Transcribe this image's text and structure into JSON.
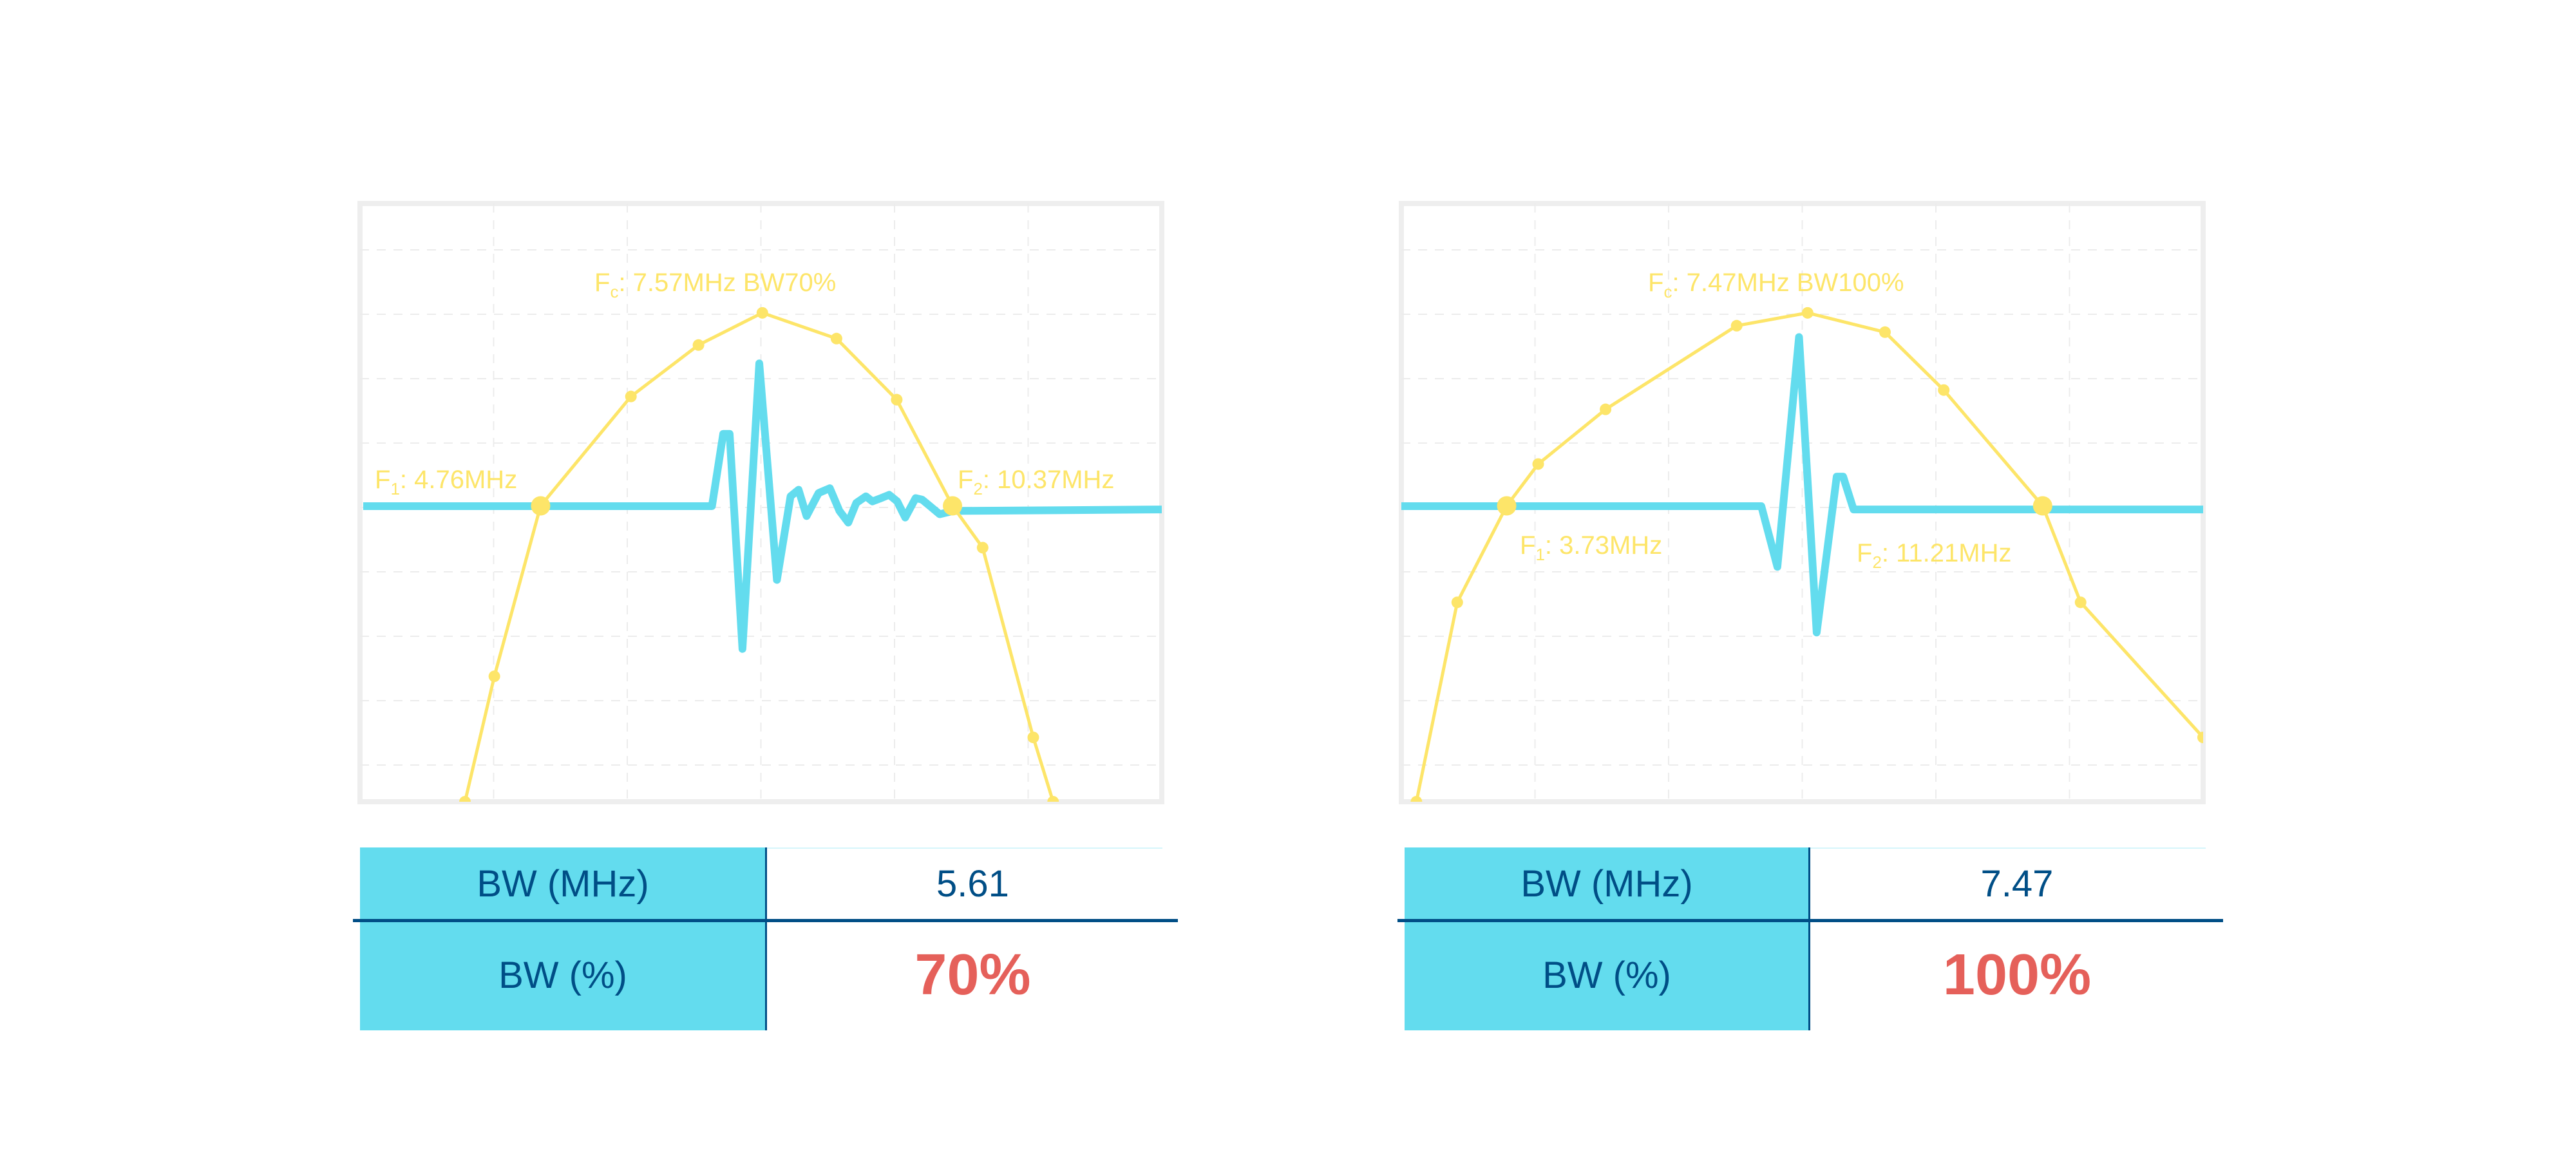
{
  "colors": {
    "pulse": "#63dcee",
    "response": "#fde569",
    "frame": "#eeeeee",
    "table_header": "#63dcee",
    "table_text": "#004e86",
    "percent": "#e5605a"
  },
  "chart_data": [
    {
      "type": "line",
      "grid": true,
      "x_unit": "MHz",
      "y_unit": "dB (relative)",
      "xlim": [
        2.3,
        13.22
      ],
      "ylim": [
        -15.2,
        3.4
      ],
      "labels": {
        "fc": {
          "sym": "F",
          "sub": "c",
          "text": ": 7.57MHz BW70%"
        },
        "f1": {
          "sym": "F",
          "sub": "1",
          "text": ": 4.76MHz"
        },
        "f2": {
          "sym": "F",
          "sub": "2",
          "text": ": 10.37MHz"
        }
      },
      "markers_mhz": [
        4.76,
        10.37
      ],
      "response": {
        "x": [
          3.73,
          4.13,
          4.76,
          5.99,
          6.91,
          7.78,
          8.79,
          9.61,
          10.37,
          10.78,
          11.47,
          11.74
        ],
        "y": [
          -15.2,
          -11.3,
          -6.0,
          -2.6,
          -1.0,
          0,
          -0.8,
          -2.7,
          -6.0,
          -7.3,
          -13.2,
          -15.2
        ]
      },
      "pulse": {
        "t": [
          0.004,
          0.439,
          0.453,
          0.461,
          0.477,
          0.498,
          0.52,
          0.537,
          0.547,
          0.557,
          0.572,
          0.586,
          0.598,
          0.609,
          0.619,
          0.631,
          0.639,
          0.65,
          0.66,
          0.67,
          0.68,
          0.693,
          0.701,
          0.711,
          0.723,
          0.74,
          1.0
        ],
        "a": [
          0,
          0,
          0.242,
          0.242,
          -0.478,
          0.478,
          -0.247,
          0.033,
          0.055,
          -0.033,
          0.044,
          0.06,
          -0.016,
          -0.055,
          0.011,
          0.033,
          0.016,
          0.027,
          0.038,
          0.016,
          -0.038,
          0.027,
          0.022,
          0,
          -0.027,
          -0.016,
          -0.011
        ]
      }
    },
    {
      "type": "line",
      "grid": true,
      "x_unit": "MHz",
      "y_unit": "dB (relative)",
      "xlim": [
        2.26,
        13.45
      ],
      "ylim": [
        -15.2,
        3.4
      ],
      "labels": {
        "fc": {
          "sym": "F",
          "sub": "c",
          "text": ": 7.47MHz BW100%"
        },
        "f1": {
          "sym": "F",
          "sub": "1",
          "text": ": 3.73MHz"
        },
        "f2": {
          "sym": "F",
          "sub": "2",
          "text": ": 11.21MHz"
        }
      },
      "markers_mhz": [
        3.73,
        11.21
      ],
      "response": {
        "x": [
          2.47,
          3.04,
          3.73,
          4.17,
          5.11,
          6.94,
          7.93,
          9.01,
          9.83,
          11.21,
          11.74,
          13.45
        ],
        "y": [
          -15.2,
          -9.0,
          -6.0,
          -4.7,
          -3.0,
          -0.4,
          0,
          -0.6,
          -2.4,
          -6.0,
          -9.0,
          -13.2
        ]
      },
      "pulse": {
        "t": [
          0,
          0.449,
          0.469,
          0.496,
          0.518,
          0.543,
          0.551,
          0.564,
          1.0
        ],
        "a": [
          0,
          0,
          -0.203,
          0.566,
          -0.423,
          0.099,
          0.099,
          -0.011,
          -0.011
        ]
      }
    }
  ],
  "tables": [
    {
      "row1_label": "BW (MHz)",
      "row1_value": "5.61",
      "row2_label": "BW (%)",
      "row2_value": "70%"
    },
    {
      "row1_label": "BW (MHz)",
      "row1_value": "7.47",
      "row2_label": "BW (%)",
      "row2_value": "100%"
    }
  ]
}
